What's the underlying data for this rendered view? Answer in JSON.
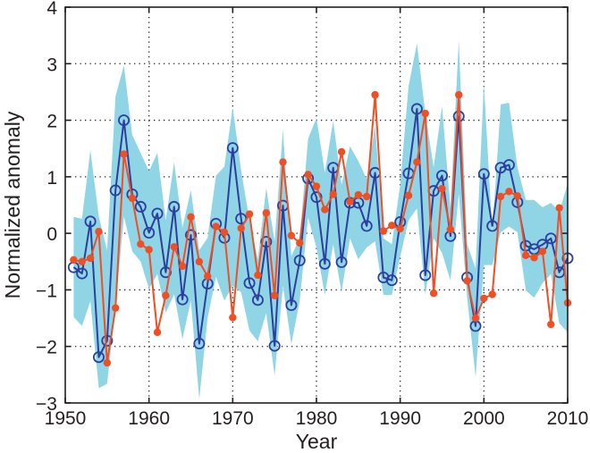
{
  "chart_data": {
    "type": "line",
    "title": "",
    "xlabel": "Year",
    "ylabel": "Normalized anomaly",
    "xlim": [
      1950,
      2010
    ],
    "ylim": [
      -3,
      4
    ],
    "xticks": [
      1950,
      1960,
      1970,
      1980,
      1990,
      2000,
      2010
    ],
    "yticks": [
      -3,
      -2,
      -1,
      0,
      1,
      2,
      3,
      4
    ],
    "xtick_labels": [
      "1950",
      "1960",
      "1970",
      "1980",
      "1990",
      "2000",
      "2010"
    ],
    "ytick_labels": [
      "−3",
      "−2",
      "−1",
      "0",
      "1",
      "2",
      "3",
      "4"
    ],
    "grid": true,
    "legend": "none",
    "x": [
      1951,
      1952,
      1953,
      1954,
      1955,
      1956,
      1957,
      1958,
      1959,
      1960,
      1961,
      1962,
      1963,
      1964,
      1965,
      1966,
      1967,
      1968,
      1969,
      1970,
      1971,
      1972,
      1973,
      1974,
      1975,
      1976,
      1977,
      1978,
      1979,
      1980,
      1981,
      1982,
      1983,
      1984,
      1985,
      1986,
      1987,
      1988,
      1989,
      1990,
      1991,
      1992,
      1993,
      1994,
      1995,
      1996,
      1997,
      1998,
      1999,
      2000,
      2001,
      2002,
      2003,
      2004,
      2005,
      2006,
      2007,
      2008,
      2009,
      2010
    ],
    "band": {
      "name": "spread",
      "color": "#8fd5e6",
      "upper": [
        0.29,
        0.26,
        1.47,
        0.3,
        -0.3,
        2.42,
        2.97,
        1.74,
        1.42,
        1.1,
        1.42,
        0.23,
        1.26,
        0.1,
        0.76,
        -0.3,
        -0.08,
        1.02,
        1.18,
        2.23,
        1.12,
        0.23,
        -0.46,
        0.8,
        -0.14,
        1.83,
        -0.4,
        -0.09,
        1.67,
        2.04,
        1.07,
        1.99,
        0.86,
        1.54,
        1.28,
        0.96,
        1.91,
        -0.09,
        -0.19,
        0.86,
        2.6,
        3.36,
        2.12,
        1.17,
        2.25,
        0.44,
        3.41,
        -0.19,
        -0.62,
        2.65,
        0.02,
        2.28,
        2.31,
        1.17,
        0.59,
        0.59,
        0.46,
        0.54,
        0.38,
        0.88
      ],
      "lower": [
        -1.48,
        -1.64,
        -1.2,
        -2.74,
        -2.66,
        -1.3,
        0.3,
        -0.32,
        -0.5,
        -0.98,
        -0.72,
        -1.4,
        -1.08,
        -1.87,
        -1.19,
        -2.93,
        -1.5,
        -0.77,
        -1.19,
        -0.93,
        -1.04,
        -1.72,
        -1.91,
        -1.41,
        -2.51,
        -0.93,
        -1.96,
        -1.19,
        0.28,
        -0.25,
        -1.09,
        -0.2,
        -1.04,
        -0.09,
        -0.46,
        -0.25,
        -0.14,
        -1.09,
        -1.09,
        -0.41,
        0.23,
        0.44,
        -1.09,
        -0.09,
        -0.35,
        -0.83,
        0.7,
        -1.14,
        -2.54,
        -0.56,
        -0.56,
        0.02,
        0.12,
        0.02,
        -1.01,
        -1.14,
        -0.88,
        -0.72,
        -1.59,
        -1.75
      ]
    },
    "series": [
      {
        "name": "blue-open-circles",
        "color": "#2b3f9e",
        "marker": "open-circle",
        "values": [
          -0.6,
          -0.71,
          0.21,
          -2.19,
          -1.9,
          0.76,
          2.0,
          0.69,
          0.47,
          0.01,
          0.35,
          -0.69,
          0.47,
          -1.17,
          -0.03,
          -1.95,
          -0.89,
          0.17,
          -0.08,
          1.51,
          0.26,
          -0.88,
          -1.18,
          -0.15,
          -1.99,
          0.49,
          -1.27,
          -0.48,
          0.97,
          0.64,
          -0.54,
          1.16,
          -0.51,
          0.54,
          0.54,
          0.13,
          1.07,
          -0.78,
          -0.83,
          0.2,
          1.06,
          2.2,
          -0.74,
          0.75,
          1.02,
          -0.05,
          2.07,
          -0.78,
          -1.64,
          1.05,
          0.13,
          1.16,
          1.21,
          0.55,
          -0.22,
          -0.28,
          -0.2,
          -0.09,
          -0.69,
          -0.44
        ]
      },
      {
        "name": "red-filled-dots",
        "color": "#f04e23",
        "marker": "filled-circle",
        "values": [
          -0.47,
          -0.5,
          -0.44,
          0.03,
          -2.29,
          -1.32,
          1.4,
          0.62,
          -0.19,
          -0.29,
          -1.75,
          -1.1,
          -0.24,
          -0.58,
          0.29,
          -0.5,
          -0.76,
          0.12,
          0.02,
          -1.49,
          0.09,
          0.34,
          -0.74,
          0.36,
          -1.1,
          1.26,
          -0.04,
          -0.17,
          1.04,
          0.83,
          0.42,
          0.69,
          1.44,
          0.56,
          0.68,
          0.65,
          2.45,
          0.04,
          0.14,
          0.08,
          0.67,
          1.26,
          2.12,
          -1.06,
          0.79,
          0.07,
          2.45,
          -0.84,
          -1.5,
          -1.15,
          -1.08,
          0.65,
          0.74,
          0.66,
          -0.39,
          -0.43,
          -0.32,
          -1.61,
          0.45,
          -1.23
        ]
      }
    ]
  }
}
